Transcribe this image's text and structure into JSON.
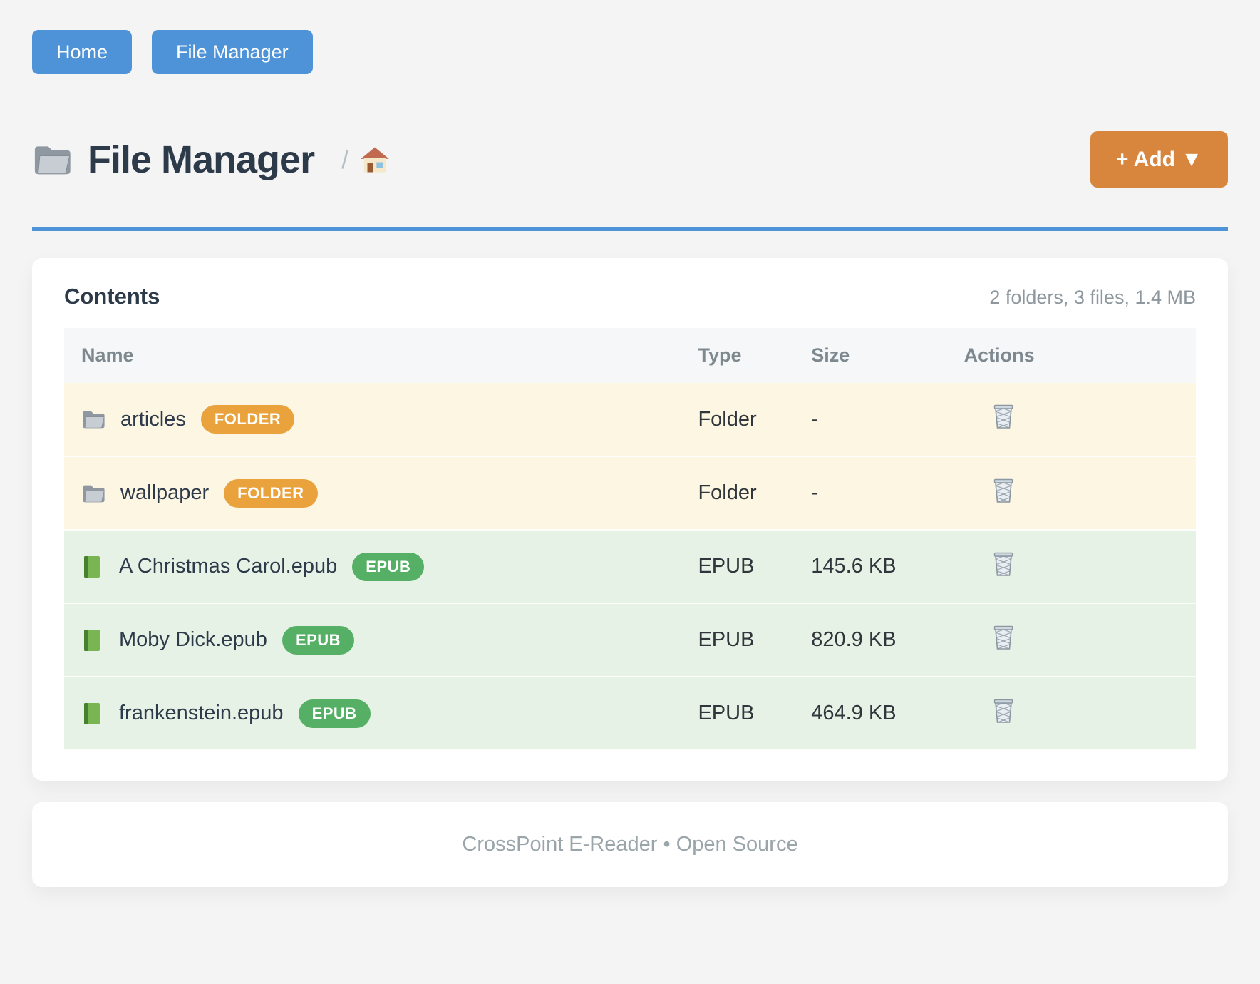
{
  "nav": {
    "items": [
      {
        "label": "Home"
      },
      {
        "label": "File Manager"
      }
    ]
  },
  "header": {
    "title": "File Manager",
    "breadcrumb_separator": "/",
    "add_button_label": "+ Add ▼"
  },
  "contents_card": {
    "title": "Contents",
    "summary": "2 folders, 3 files, 1.4 MB",
    "table": {
      "columns": [
        "Name",
        "Type",
        "Size",
        "Actions"
      ],
      "rows": [
        {
          "name": "articles",
          "badge": "FOLDER",
          "kind": "folder",
          "type": "Folder",
          "size": "-"
        },
        {
          "name": "wallpaper",
          "badge": "FOLDER",
          "kind": "folder",
          "type": "Folder",
          "size": "-"
        },
        {
          "name": "A Christmas Carol.epub",
          "badge": "EPUB",
          "kind": "epub",
          "type": "EPUB",
          "size": "145.6 KB"
        },
        {
          "name": "Moby Dick.epub",
          "badge": "EPUB",
          "kind": "epub",
          "type": "EPUB",
          "size": "820.9 KB"
        },
        {
          "name": "frankenstein.epub",
          "badge": "EPUB",
          "kind": "epub",
          "type": "EPUB",
          "size": "464.9 KB"
        }
      ]
    }
  },
  "footer": {
    "text": "CrossPoint E-Reader • Open Source"
  },
  "icons": {
    "page_icon": "folder-icon",
    "breadcrumb_root": "house-icon",
    "folder_row_icon": "folder-icon",
    "epub_row_icon": "green-book-icon",
    "delete_icon": "trash-icon"
  },
  "colors": {
    "primary_blue": "#4e93d7",
    "accent_orange": "#d8863e",
    "badge_orange": "#e9a23c",
    "badge_green": "#55b065",
    "folder_row_bg": "#fdf6e2",
    "epub_row_bg": "#e7f2e7",
    "page_bg": "#f4f4f5"
  }
}
